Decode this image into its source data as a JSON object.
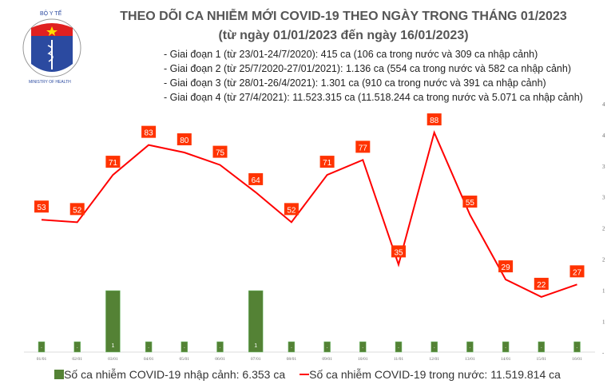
{
  "logo": {
    "text_top": "BỘ Y TẾ",
    "text_bottom": "MINISTRY OF HEALTH"
  },
  "title": "THEO DÕI CA NHIỄM MỚI COVID-19 THEO NGÀY TRONG THÁNG 01/2023",
  "subtitle": "(từ ngày 01/01/2023 đến ngày 16/01/2023)",
  "phases": [
    "- Giai đoạn 1 (từ 23/01-24/7/2020): 415 ca (106 ca trong nước và 309 ca nhập cảnh)",
    "- Giai đoạn 2 (từ 25/7/2020-27/01/2021): 1.136 ca (554 ca trong nước và 582 ca nhập cảnh)",
    "- Giai đoạn 3 (từ 28/01-26/4/2021): 1.301 ca (910 ca trong nước và 391 ca nhập cảnh)",
    "- Giai đoạn 4 (từ 27/4/2021): 11.523.315 ca (11.518.244 ca trong nước và 5.071 ca nhập cảnh)"
  ],
  "chart_data": {
    "type": "bar+line",
    "categories": [
      "01/01",
      "02/01",
      "03/01",
      "04/01",
      "05/01",
      "06/01",
      "07/01",
      "08/01",
      "09/01",
      "10/01",
      "11/01",
      "12/01",
      "13/01",
      "14/01",
      "15/01",
      "16/01"
    ],
    "series": [
      {
        "name": "Số ca nhiễm COVID-19 nhập cảnh: 6.353 ca",
        "type": "bar",
        "color": "#548235",
        "values": [
          0,
          0,
          1,
          0,
          0,
          0,
          1,
          0,
          0,
          0,
          0,
          0,
          0,
          0,
          0,
          0
        ],
        "labels": [
          "-",
          "-",
          "1",
          "-",
          "-",
          "-",
          "1",
          "-",
          "-",
          "-",
          "-",
          "-",
          "-",
          "-",
          "-",
          "-"
        ]
      },
      {
        "name": "Số ca nhiễm COVID-19 trong nước: 11.519.814 ca",
        "type": "line",
        "color": "#ff0000",
        "values": [
          53,
          52,
          71,
          83,
          80,
          75,
          64,
          52,
          71,
          77,
          35,
          88,
          55,
          29,
          22,
          27
        ]
      }
    ],
    "right_axis_ticks": [
      "4",
      "4",
      "3",
      "3",
      "2",
      "2",
      "1",
      "1",
      "-"
    ],
    "label_box_color": "#ff3300",
    "grid": false,
    "legend": "bottom"
  }
}
